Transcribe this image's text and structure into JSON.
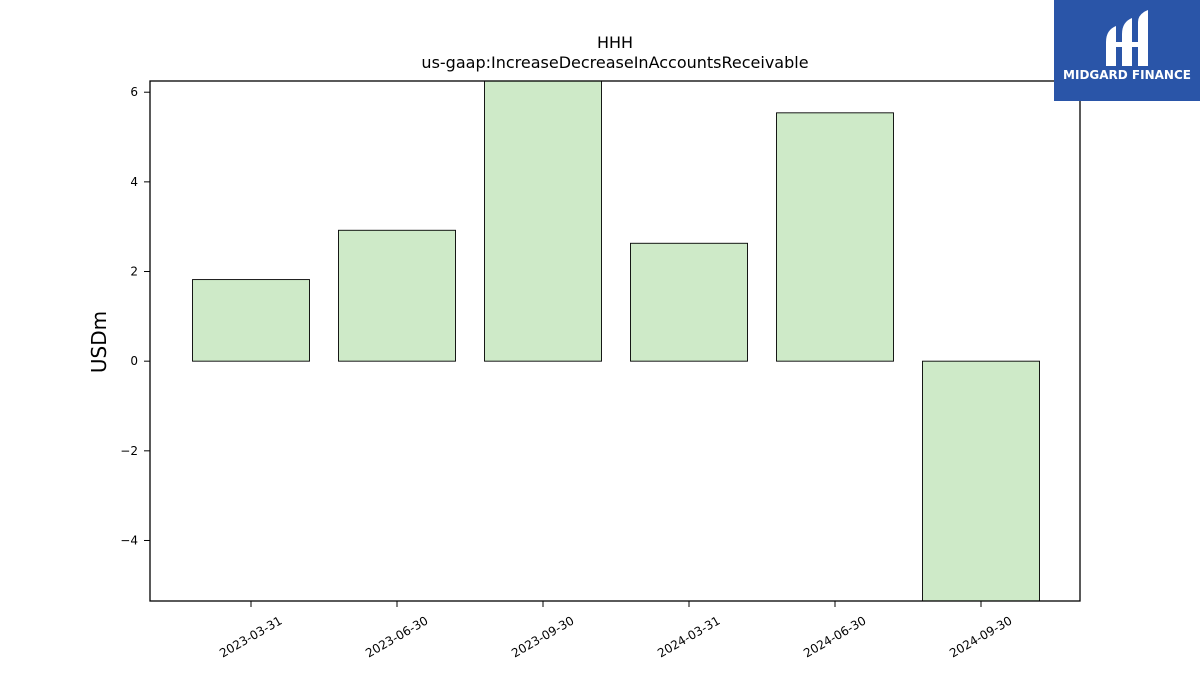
{
  "chart_data": {
    "type": "bar",
    "title": "HHH",
    "subtitle": "us-gaap:IncreaseDecreaseInAccountsReceivable",
    "xlabel": "",
    "ylabel": "USDm",
    "categories": [
      "2023-03-31",
      "2023-06-30",
      "2023-09-30",
      "2024-03-31",
      "2024-06-30",
      "2024-09-30"
    ],
    "values": [
      1.82,
      2.92,
      6.3,
      2.63,
      5.54,
      -5.4
    ],
    "ylim": [
      -5.35,
      6.25
    ],
    "yticks": [
      -4,
      -2,
      0,
      2,
      4,
      6
    ],
    "ytick_labels": [
      "−4",
      "−2",
      "0",
      "2",
      "4",
      "6"
    ],
    "grid": false,
    "bar_color": "#ceeac8",
    "edge_color": "#000000"
  },
  "logo": {
    "text": "MIDGARD FINANCE",
    "color": "#2a55a8",
    "icon": "midgard-logo-icon"
  }
}
